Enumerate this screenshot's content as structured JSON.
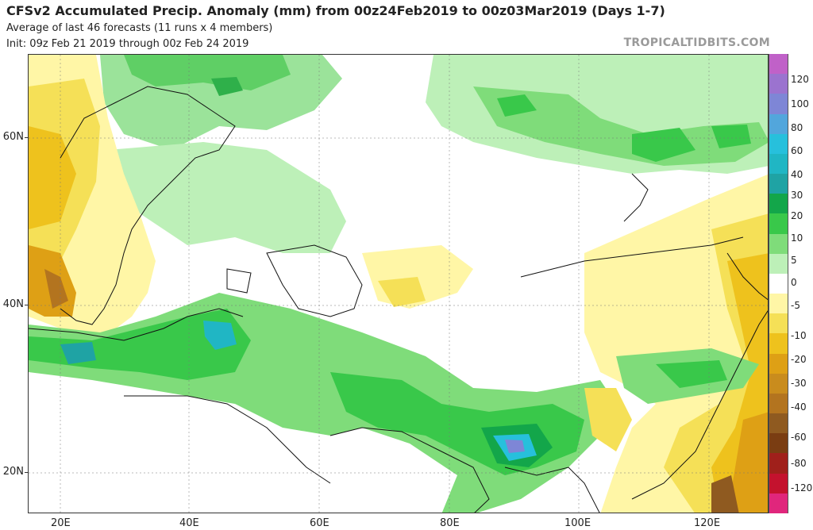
{
  "header": {
    "title": "CFSv2 Accumulated Precip. Anomaly (mm) from 00z24Feb2019 to 00z03Mar2019 (Days 1-7)",
    "subtitle": "Average of last 46 forecasts (11 runs x 4 members)",
    "init": "Init: 09z Feb 21 2019 through 00z Feb 24 2019",
    "credit": "TROPICALTIDBITS.COM"
  },
  "axes": {
    "lat_labels": [
      "60N",
      "40N",
      "20N"
    ],
    "lon_labels": [
      "20E",
      "40E",
      "60E",
      "80E",
      "100E",
      "120E"
    ]
  },
  "colorbar": {
    "labels": [
      "120",
      "100",
      "80",
      "60",
      "40",
      "30",
      "20",
      "10",
      "5",
      "0",
      "-5",
      "-10",
      "-20",
      "-30",
      "-40",
      "-60",
      "-80",
      "-120"
    ],
    "colors": [
      "#c061c8",
      "#9b73cf",
      "#7e86d6",
      "#52a6dc",
      "#27c0dc",
      "#20b6c4",
      "#1fa3a4",
      "#13a64a",
      "#39c84a",
      "#7fdc7a",
      "#bdf0b8",
      "#ffffff",
      "#fff6a6",
      "#f5e057",
      "#eec21d",
      "#dea015",
      "#c98c1d",
      "#b3741f",
      "#8f5a20",
      "#7a3d12",
      "#a0201b",
      "#c4122e",
      "#e0267c"
    ]
  }
}
